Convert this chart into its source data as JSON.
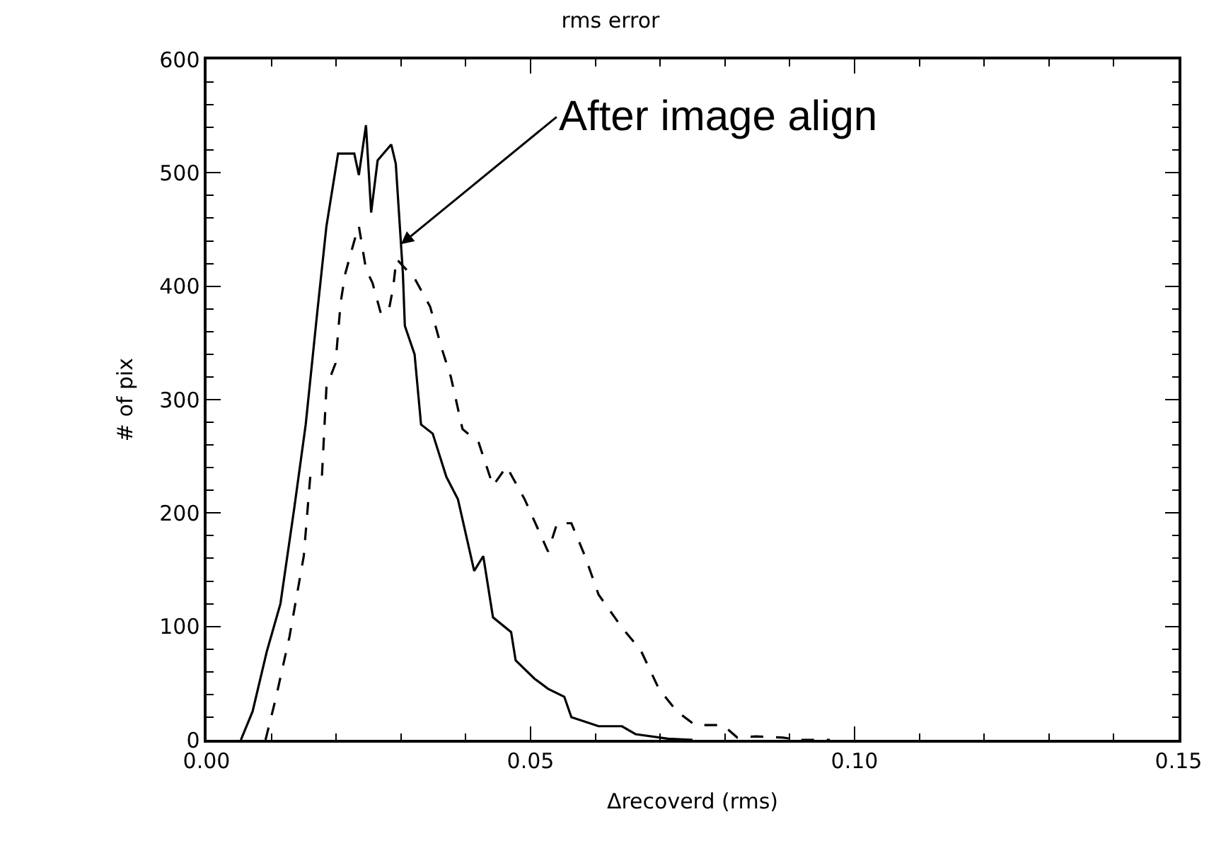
{
  "chart_data": {
    "type": "line",
    "title": "rms error",
    "xlabel": "Δrecoverd (rms)",
    "ylabel": "# of pix",
    "xlim": [
      0,
      0.15
    ],
    "xticks": [
      {
        "value": 0,
        "label": "0.00"
      },
      {
        "value": 0.05,
        "label": "0.05"
      },
      {
        "value": 0.1,
        "label": "0.10"
      },
      {
        "value": 0.15,
        "label": "0.15"
      }
    ],
    "ylim": [
      0,
      600
    ],
    "yticks": [
      0,
      100,
      200,
      300,
      400,
      500,
      600
    ],
    "marker": "none",
    "series": [
      {
        "color": "#000000",
        "line_style": "solid",
        "x": [
          0.0053,
          0.0071,
          0.0093,
          0.0114,
          0.0135,
          0.0153,
          0.0171,
          0.0185,
          0.0203,
          0.0228,
          0.0235,
          0.0246,
          0.0254,
          0.0264,
          0.0285,
          0.0292,
          0.0303,
          0.0306,
          0.0321,
          0.0331,
          0.0349,
          0.037,
          0.0388,
          0.0413,
          0.0427,
          0.0442,
          0.047,
          0.0477,
          0.0506,
          0.0527,
          0.0552,
          0.0563,
          0.0605,
          0.0641,
          0.0662,
          0.0712,
          0.075
        ],
        "values": [
          0,
          25,
          78,
          120,
          203,
          278,
          378,
          453,
          517,
          517,
          498,
          542,
          465,
          511,
          525,
          508,
          411,
          365,
          340,
          278,
          270,
          232,
          212,
          149,
          162,
          108,
          95,
          70,
          54,
          45,
          38,
          20,
          12,
          12,
          5,
          1,
          0
        ]
      },
      {
        "color": "#000000",
        "line_style": "dashed",
        "x": [
          0.0091,
          0.0107,
          0.0128,
          0.015,
          0.016,
          0.0178,
          0.0185,
          0.0199,
          0.0207,
          0.0214,
          0.0228,
          0.0235,
          0.0246,
          0.0256,
          0.0269,
          0.0281,
          0.0288,
          0.0293,
          0.0321,
          0.0345,
          0.0363,
          0.0377,
          0.0395,
          0.042,
          0.0442,
          0.0463,
          0.0491,
          0.0527,
          0.0541,
          0.0563,
          0.0584,
          0.0605,
          0.0641,
          0.067,
          0.0698,
          0.0726,
          0.0754,
          0.0797,
          0.0819,
          0.0848,
          0.089,
          0.0912,
          0.0962
        ],
        "values": [
          0,
          37,
          91,
          162,
          232,
          232,
          311,
          332,
          386,
          411,
          440,
          453,
          415,
          403,
          376,
          378,
          399,
          424,
          407,
          382,
          345,
          320,
          274,
          262,
          224,
          241,
          212,
          166,
          191,
          191,
          162,
          128,
          99,
          79,
          45,
          25,
          13,
          13,
          2,
          3,
          2,
          0,
          0
        ]
      }
    ],
    "annotations": [
      {
        "text": "After image align",
        "x": 0.03,
        "y": 437
      }
    ]
  }
}
